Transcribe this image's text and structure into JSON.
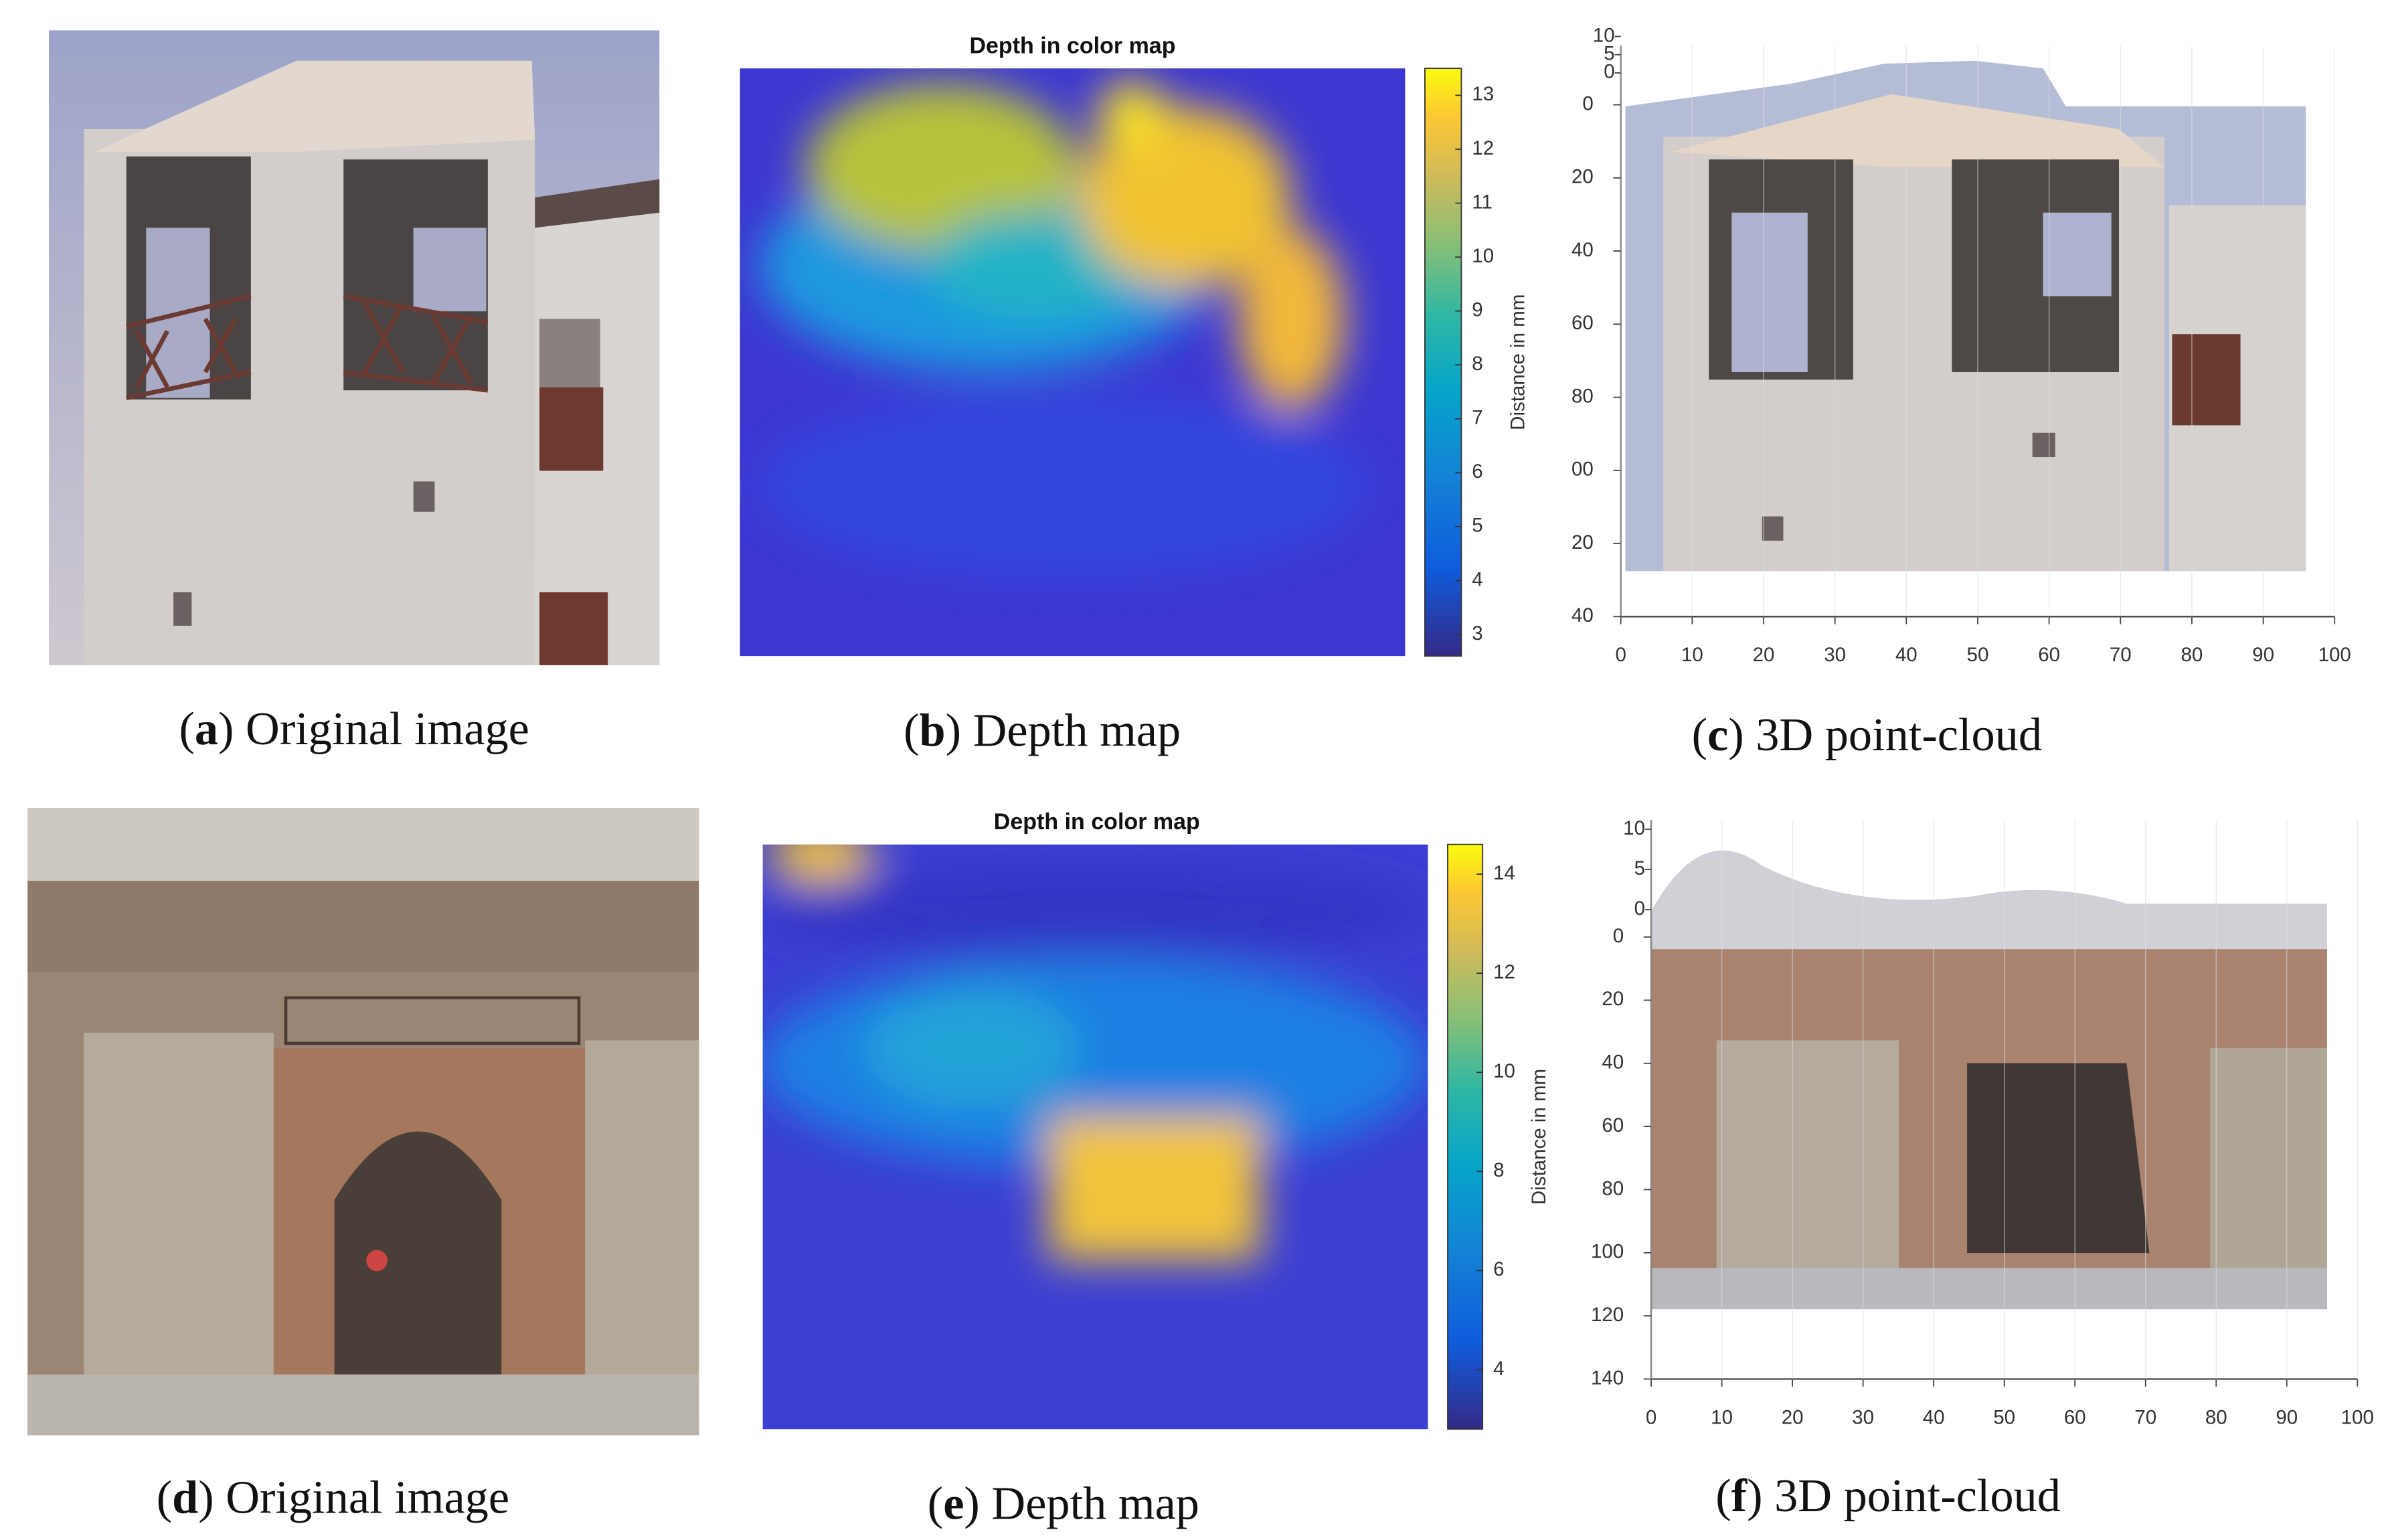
{
  "panels": [
    {
      "kind": "photo",
      "caption": {
        "open": "(",
        "label": "a",
        "text": ") Original image"
      }
    },
    {
      "kind": "depth",
      "title": "Depth in color map",
      "colorbar": {
        "label": "Distance in mm",
        "lim": [
          2.6,
          13.5
        ],
        "ticks": [
          3,
          4,
          5,
          6,
          7,
          8,
          9,
          10,
          11,
          12,
          13
        ]
      },
      "caption": {
        "open": "(",
        "label": "b",
        "text": ") Depth map"
      }
    },
    {
      "kind": "pointcloud",
      "xlim": [
        0,
        100
      ],
      "xticks": [
        0,
        10,
        20,
        30,
        40,
        50,
        60,
        70,
        80,
        90,
        100
      ],
      "ylim": [
        0,
        140
      ],
      "yticks": [
        0,
        20,
        40,
        60,
        80,
        {
          "value": 100,
          "label": "00"
        },
        {
          "value": 120,
          "label": "20"
        },
        {
          "value": 140,
          "label": "40"
        }
      ],
      "zlim": [
        0,
        10
      ],
      "zticks": [
        10,
        5,
        0
      ],
      "caption": {
        "open": "(",
        "label": "c",
        "text": ") 3D point-cloud"
      }
    },
    {
      "kind": "photo",
      "caption": {
        "open": "(",
        "label": "d",
        "text": ") Original image"
      }
    },
    {
      "kind": "depth",
      "title": "Depth in color map",
      "colorbar": {
        "label": "Distance in mm",
        "lim": [
          2.8,
          14.6
        ],
        "ticks": [
          4,
          6,
          8,
          10,
          12,
          14
        ]
      },
      "caption": {
        "open": "(",
        "label": "e",
        "text": ") Depth map"
      }
    },
    {
      "kind": "pointcloud",
      "xlim": [
        0,
        100
      ],
      "xticks": [
        0,
        10,
        20,
        30,
        40,
        50,
        60,
        70,
        80,
        90,
        100
      ],
      "ylim": [
        0,
        140
      ],
      "yticks": [
        0,
        20,
        40,
        60,
        80,
        100,
        120,
        140
      ],
      "zlim": [
        0,
        10
      ],
      "zticks": [
        10,
        5,
        0
      ],
      "caption": {
        "open": "(",
        "label": "f",
        "text": ") 3D point-cloud"
      }
    }
  ]
}
